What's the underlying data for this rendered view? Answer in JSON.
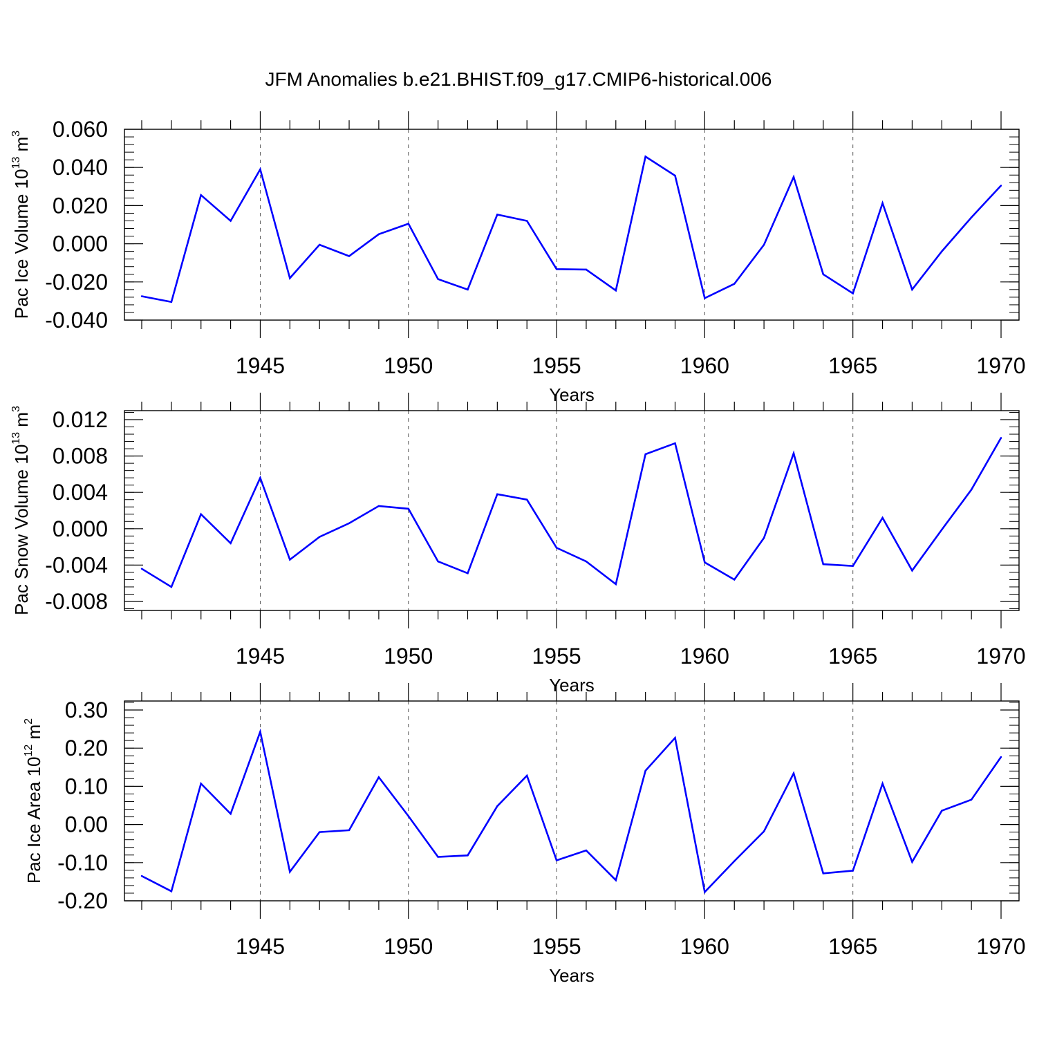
{
  "chart_data": [
    {
      "type": "line",
      "title": "JFM Anomalies b.e21.BHIST.f09_g17.CMIP6-historical.006",
      "xlabel": "Years",
      "ylabel": {
        "text": "Pac Ice Volume 10",
        "exp": "13",
        "unit_text": " m",
        "unit_exp": "3"
      },
      "xlim": [
        1941,
        1970
      ],
      "ylim": [
        -0.04,
        0.06
      ],
      "yticks": [
        -0.04,
        -0.02,
        0.0,
        0.02,
        0.04,
        0.06
      ],
      "ytick_labels": [
        "-0.040",
        "-0.020",
        "0.000",
        "0.020",
        "0.040",
        "0.060"
      ],
      "xticks": [
        1945,
        1950,
        1955,
        1960,
        1965,
        1970
      ],
      "xtick_labels": [
        "1945",
        "1950",
        "1955",
        "1960",
        "1965",
        "1970"
      ],
      "grid": "vertical dashed at major x ticks",
      "color": "#0000ff",
      "x": [
        1941,
        1942,
        1943,
        1944,
        1945,
        1946,
        1947,
        1948,
        1949,
        1950,
        1951,
        1952,
        1953,
        1954,
        1955,
        1956,
        1957,
        1958,
        1959,
        1960,
        1961,
        1962,
        1963,
        1964,
        1965,
        1966,
        1967,
        1968,
        1969,
        1970
      ],
      "values": [
        -0.0275,
        -0.0305,
        0.0255,
        0.012,
        0.039,
        -0.018,
        -0.0005,
        -0.0065,
        0.005,
        0.0105,
        -0.0185,
        -0.024,
        0.0153,
        0.012,
        -0.0133,
        -0.0135,
        -0.0245,
        0.0457,
        0.0357,
        -0.0285,
        -0.021,
        -0.0005,
        0.035,
        -0.016,
        -0.026,
        0.0213,
        -0.024,
        -0.004,
        0.0138,
        0.0305
      ]
    },
    {
      "type": "line",
      "title": "",
      "xlabel": "Years",
      "ylabel": {
        "text": "Pac Snow Volume 10",
        "exp": "13",
        "unit_text": " m",
        "unit_exp": "3"
      },
      "xlim": [
        1941,
        1970
      ],
      "ylim": [
        -0.009,
        0.013
      ],
      "yticks": [
        -0.008,
        -0.004,
        0.0,
        0.004,
        0.008,
        0.012
      ],
      "ytick_labels": [
        "-0.008",
        "-0.004",
        "0.000",
        "0.004",
        "0.008",
        "0.012"
      ],
      "xticks": [
        1945,
        1950,
        1955,
        1960,
        1965,
        1970
      ],
      "xtick_labels": [
        "1945",
        "1950",
        "1955",
        "1960",
        "1965",
        "1970"
      ],
      "grid": "vertical dashed at major x ticks",
      "color": "#0000ff",
      "x": [
        1941,
        1942,
        1943,
        1944,
        1945,
        1946,
        1947,
        1948,
        1949,
        1950,
        1951,
        1952,
        1953,
        1954,
        1955,
        1956,
        1957,
        1958,
        1959,
        1960,
        1961,
        1962,
        1963,
        1964,
        1965,
        1966,
        1967,
        1968,
        1969,
        1970
      ],
      "values": [
        -0.0044,
        -0.0064,
        0.0016,
        -0.0016,
        0.0056,
        -0.0034,
        -0.0009,
        0.0006,
        0.0025,
        0.0022,
        -0.0036,
        -0.0049,
        0.0038,
        0.0032,
        -0.0021,
        -0.0036,
        -0.0061,
        0.0082,
        0.0094,
        -0.0037,
        -0.0056,
        -0.001,
        0.0083,
        -0.0039,
        -0.0041,
        0.0012,
        -0.0046,
        -0.0001,
        0.0043,
        0.01
      ]
    },
    {
      "type": "line",
      "title": "",
      "xlabel": "Years",
      "ylabel": {
        "text": "Pac Ice Area 10",
        "exp": "12",
        "unit_text": " m",
        "unit_exp": "2"
      },
      "xlim": [
        1941,
        1970
      ],
      "ylim": [
        -0.2,
        0.3
      ],
      "yticks": [
        -0.2,
        -0.1,
        0.0,
        0.1,
        0.2,
        0.3
      ],
      "ytick_labels": [
        "-0.20",
        "-0.10",
        "0.00",
        "0.10",
        "0.20",
        "0.30"
      ],
      "xticks": [
        1945,
        1950,
        1955,
        1960,
        1965,
        1970
      ],
      "xtick_labels": [
        "1945",
        "1950",
        "1955",
        "1960",
        "1965",
        "1970"
      ],
      "grid": "vertical dashed at major x ticks",
      "color": "#0000ff",
      "x": [
        1941,
        1942,
        1943,
        1944,
        1945,
        1946,
        1947,
        1948,
        1949,
        1950,
        1951,
        1952,
        1953,
        1954,
        1955,
        1956,
        1957,
        1958,
        1959,
        1960,
        1961,
        1962,
        1963,
        1964,
        1965,
        1966,
        1967,
        1968,
        1969,
        1970
      ],
      "values": [
        -0.135,
        -0.175,
        0.107,
        0.028,
        0.243,
        -0.124,
        -0.02,
        -0.015,
        0.124,
        0.022,
        -0.085,
        -0.081,
        0.048,
        0.128,
        -0.094,
        -0.068,
        -0.146,
        0.141,
        0.227,
        -0.177,
        -0.096,
        -0.018,
        0.134,
        -0.128,
        -0.121,
        0.107,
        -0.098,
        0.036,
        0.065,
        0.177
      ]
    }
  ]
}
